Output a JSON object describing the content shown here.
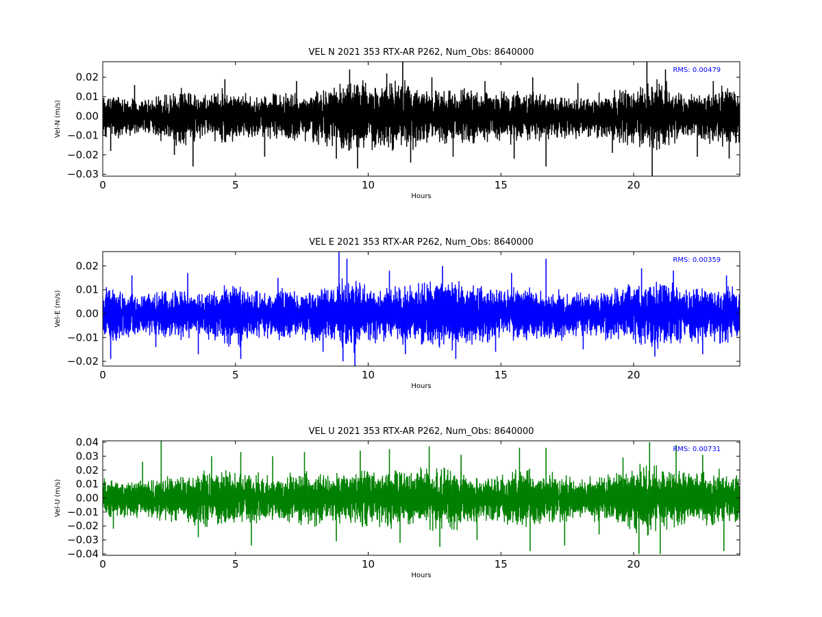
{
  "figure": {
    "background": "#ffffff"
  },
  "chart_data": [
    {
      "type": "line",
      "title": "VEL N 2021 353 RTX-AR  P262, Num_Obs: 8640000",
      "xlabel": "Hours",
      "ylabel": "Vel-N (m/s)",
      "xlim": [
        0,
        24
      ],
      "ylim": [
        -0.031,
        0.028
      ],
      "xticks": [
        0,
        5,
        10,
        15,
        20
      ],
      "xtick_labels": [
        "0",
        "5",
        "10",
        "15",
        "20"
      ],
      "yticks": [
        -0.03,
        -0.02,
        -0.01,
        0.0,
        0.01,
        0.02
      ],
      "ytick_labels": [
        "−0.03",
        "−0.02",
        "−0.01",
        "0.00",
        "0.01",
        "0.02"
      ],
      "color": "#000000",
      "grid": false,
      "annotation": "RMS:  0.00479",
      "annotation_color": "#0000ff",
      "series": [
        {
          "kind": "envelope",
          "x": [
            0,
            0.5,
            1,
            1.5,
            2,
            2.5,
            3,
            3.5,
            4,
            4.5,
            5,
            5.5,
            6,
            6.5,
            7,
            7.5,
            8,
            8.5,
            9,
            9.5,
            10,
            10.5,
            11,
            11.5,
            12,
            12.5,
            13,
            13.5,
            14,
            14.5,
            15,
            15.5,
            16,
            16.5,
            17,
            17.5,
            18,
            18.5,
            19,
            19.5,
            20,
            20.5,
            21,
            21.5,
            22,
            22.5,
            23,
            23.5,
            24
          ],
          "upper": [
            0.012,
            0.013,
            0.011,
            0.009,
            0.012,
            0.014,
            0.015,
            0.014,
            0.013,
            0.015,
            0.014,
            0.012,
            0.011,
            0.013,
            0.014,
            0.013,
            0.014,
            0.016,
            0.018,
            0.021,
            0.02,
            0.016,
            0.021,
            0.019,
            0.016,
            0.015,
            0.014,
            0.015,
            0.016,
            0.014,
            0.014,
            0.015,
            0.014,
            0.013,
            0.011,
            0.012,
            0.011,
            0.012,
            0.014,
            0.016,
            0.015,
            0.019,
            0.02,
            0.017,
            0.012,
            0.013,
            0.015,
            0.018,
            0.014
          ],
          "lower": [
            -0.012,
            -0.013,
            -0.011,
            -0.01,
            -0.013,
            -0.015,
            -0.017,
            -0.015,
            -0.014,
            -0.016,
            -0.015,
            -0.013,
            -0.012,
            -0.014,
            -0.015,
            -0.014,
            -0.015,
            -0.018,
            -0.019,
            -0.022,
            -0.021,
            -0.017,
            -0.02,
            -0.019,
            -0.016,
            -0.015,
            -0.015,
            -0.016,
            -0.017,
            -0.015,
            -0.015,
            -0.016,
            -0.015,
            -0.014,
            -0.012,
            -0.013,
            -0.012,
            -0.012,
            -0.015,
            -0.017,
            -0.016,
            -0.021,
            -0.022,
            -0.018,
            -0.013,
            -0.014,
            -0.016,
            -0.018,
            -0.014
          ]
        },
        {
          "kind": "spikes",
          "x": [
            0.3,
            1.2,
            2.7,
            3.4,
            4.6,
            6.1,
            7.3,
            8.8,
            9.3,
            9.6,
            10.7,
            11.3,
            11.6,
            12.4,
            13.2,
            14.4,
            15.5,
            16.2,
            16.7,
            17.9,
            19.2,
            20.5,
            20.7,
            21.2,
            22.4,
            23.0,
            23.6
          ],
          "y": [
            -0.018,
            0.016,
            -0.02,
            -0.026,
            0.019,
            -0.021,
            0.018,
            -0.022,
            0.024,
            -0.027,
            0.022,
            0.028,
            -0.024,
            0.02,
            -0.021,
            0.018,
            -0.022,
            0.02,
            -0.026,
            0.017,
            -0.019,
            0.028,
            -0.031,
            0.024,
            -0.021,
            0.018,
            -0.022
          ]
        }
      ]
    },
    {
      "type": "line",
      "title": "VEL E 2021 353 RTX-AR  P262, Num_Obs: 8640000",
      "xlabel": "Hours",
      "ylabel": "Vel-E (m/s)",
      "xlim": [
        0,
        24
      ],
      "ylim": [
        -0.022,
        0.026
      ],
      "xticks": [
        0,
        5,
        10,
        15,
        20
      ],
      "xtick_labels": [
        "0",
        "5",
        "10",
        "15",
        "20"
      ],
      "yticks": [
        -0.02,
        -0.01,
        0.0,
        0.01,
        0.02
      ],
      "ytick_labels": [
        "−0.02",
        "−0.01",
        "0.00",
        "0.01",
        "0.02"
      ],
      "color": "#0000ff",
      "grid": false,
      "annotation": "RMS:  0.00359",
      "annotation_color": "#0000ff",
      "series": [
        {
          "kind": "envelope",
          "x": [
            0,
            0.5,
            1,
            1.5,
            2,
            2.5,
            3,
            3.5,
            4,
            4.5,
            5,
            5.5,
            6,
            6.5,
            7,
            7.5,
            8,
            8.5,
            9,
            9.5,
            10,
            10.5,
            11,
            11.5,
            12,
            12.5,
            13,
            13.5,
            14,
            14.5,
            15,
            15.5,
            16,
            16.5,
            17,
            17.5,
            18,
            18.5,
            19,
            19.5,
            20,
            20.5,
            21,
            21.5,
            22,
            22.5,
            23,
            23.5,
            24
          ],
          "upper": [
            0.013,
            0.012,
            0.011,
            0.009,
            0.01,
            0.011,
            0.012,
            0.009,
            0.011,
            0.013,
            0.014,
            0.012,
            0.01,
            0.011,
            0.012,
            0.011,
            0.012,
            0.013,
            0.017,
            0.016,
            0.014,
            0.012,
            0.012,
            0.014,
            0.015,
            0.016,
            0.017,
            0.015,
            0.013,
            0.012,
            0.011,
            0.012,
            0.012,
            0.011,
            0.01,
            0.011,
            0.01,
            0.01,
            0.011,
            0.012,
            0.013,
            0.014,
            0.016,
            0.014,
            0.012,
            0.013,
            0.012,
            0.013,
            0.012
          ],
          "lower": [
            -0.014,
            -0.013,
            -0.012,
            -0.01,
            -0.011,
            -0.012,
            -0.013,
            -0.01,
            -0.012,
            -0.014,
            -0.015,
            -0.013,
            -0.011,
            -0.012,
            -0.013,
            -0.012,
            -0.013,
            -0.015,
            -0.018,
            -0.017,
            -0.015,
            -0.013,
            -0.013,
            -0.015,
            -0.016,
            -0.017,
            -0.016,
            -0.015,
            -0.014,
            -0.013,
            -0.012,
            -0.013,
            -0.013,
            -0.012,
            -0.011,
            -0.012,
            -0.011,
            -0.011,
            -0.012,
            -0.013,
            -0.014,
            -0.015,
            -0.016,
            -0.015,
            -0.013,
            -0.014,
            -0.013,
            -0.014,
            -0.013
          ]
        },
        {
          "kind": "spikes",
          "x": [
            0.3,
            1.1,
            2.0,
            3.2,
            3.6,
            5.2,
            6.6,
            8.3,
            8.9,
            9.05,
            9.2,
            9.5,
            10.8,
            11.4,
            12.8,
            13.3,
            14.8,
            15.4,
            16.7,
            18.1,
            20.3,
            20.8,
            21.5,
            22.6,
            23.5
          ],
          "y": [
            -0.019,
            0.016,
            -0.014,
            0.017,
            -0.017,
            -0.019,
            0.015,
            -0.016,
            0.026,
            -0.02,
            0.023,
            -0.022,
            0.018,
            -0.017,
            0.02,
            -0.019,
            -0.016,
            0.017,
            0.023,
            -0.015,
            0.019,
            -0.018,
            0.018,
            -0.017,
            0.016
          ]
        }
      ]
    },
    {
      "type": "line",
      "title": "VEL U 2021 353 RTX-AR  P262, Num_Obs: 8640000",
      "xlabel": "Hours",
      "ylabel": "Vel-U (m/s)",
      "xlim": [
        0,
        24
      ],
      "ylim": [
        -0.041,
        0.041
      ],
      "xticks": [
        0,
        5,
        10,
        15,
        20
      ],
      "xtick_labels": [
        "0",
        "5",
        "10",
        "15",
        "20"
      ],
      "yticks": [
        -0.04,
        -0.03,
        -0.02,
        -0.01,
        0.0,
        0.01,
        0.02,
        0.03,
        0.04
      ],
      "ytick_labels": [
        "−0.04",
        "−0.03",
        "−0.02",
        "−0.01",
        "0.00",
        "0.01",
        "0.02",
        "0.03",
        "0.04"
      ],
      "color": "#008000",
      "grid": false,
      "annotation": "RMS:  0.00731",
      "annotation_color": "#0000ff",
      "series": [
        {
          "kind": "envelope",
          "x": [
            0,
            0.5,
            1,
            1.5,
            2,
            2.5,
            3,
            3.5,
            4,
            4.5,
            5,
            5.5,
            6,
            6.5,
            7,
            7.5,
            8,
            8.5,
            9,
            9.5,
            10,
            10.5,
            11,
            11.5,
            12,
            12.5,
            13,
            13.5,
            14,
            14.5,
            15,
            15.5,
            16,
            16.5,
            17,
            17.5,
            18,
            18.5,
            19,
            19.5,
            20,
            20.5,
            21,
            21.5,
            22,
            22.5,
            23,
            23.5,
            24
          ],
          "upper": [
            0.016,
            0.015,
            0.014,
            0.016,
            0.018,
            0.019,
            0.017,
            0.02,
            0.022,
            0.021,
            0.022,
            0.02,
            0.018,
            0.016,
            0.019,
            0.022,
            0.021,
            0.018,
            0.02,
            0.022,
            0.024,
            0.021,
            0.022,
            0.024,
            0.023,
            0.025,
            0.024,
            0.022,
            0.018,
            0.016,
            0.019,
            0.022,
            0.023,
            0.021,
            0.019,
            0.017,
            0.016,
            0.017,
            0.018,
            0.021,
            0.026,
            0.027,
            0.024,
            0.021,
            0.02,
            0.021,
            0.022,
            0.021,
            0.018
          ],
          "lower": [
            -0.017,
            -0.016,
            -0.015,
            -0.017,
            -0.019,
            -0.02,
            -0.018,
            -0.021,
            -0.023,
            -0.022,
            -0.024,
            -0.021,
            -0.019,
            -0.017,
            -0.02,
            -0.023,
            -0.022,
            -0.019,
            -0.021,
            -0.023,
            -0.025,
            -0.022,
            -0.023,
            -0.025,
            -0.024,
            -0.026,
            -0.025,
            -0.023,
            -0.019,
            -0.017,
            -0.02,
            -0.023,
            -0.024,
            -0.022,
            -0.02,
            -0.018,
            -0.017,
            -0.018,
            -0.019,
            -0.022,
            -0.027,
            -0.028,
            -0.025,
            -0.022,
            -0.021,
            -0.022,
            -0.023,
            -0.022,
            -0.019
          ]
        },
        {
          "kind": "spikes",
          "x": [
            0.4,
            1.5,
            2.2,
            3.6,
            4.1,
            5.2,
            5.6,
            6.4,
            7.6,
            8.8,
            9.7,
            10.8,
            11.2,
            12.3,
            12.7,
            13.5,
            14.1,
            15.7,
            16.1,
            16.7,
            17.4,
            18.7,
            19.6,
            20.2,
            20.6,
            21.0,
            21.6,
            22.6,
            23.4
          ],
          "y": [
            -0.022,
            0.026,
            0.041,
            -0.028,
            0.03,
            0.033,
            -0.034,
            0.03,
            0.033,
            -0.031,
            0.034,
            0.035,
            -0.032,
            0.037,
            -0.035,
            0.031,
            -0.03,
            0.036,
            -0.038,
            0.036,
            -0.034,
            -0.026,
            0.029,
            -0.04,
            0.04,
            -0.04,
            0.038,
            0.031,
            -0.038
          ]
        }
      ]
    }
  ]
}
